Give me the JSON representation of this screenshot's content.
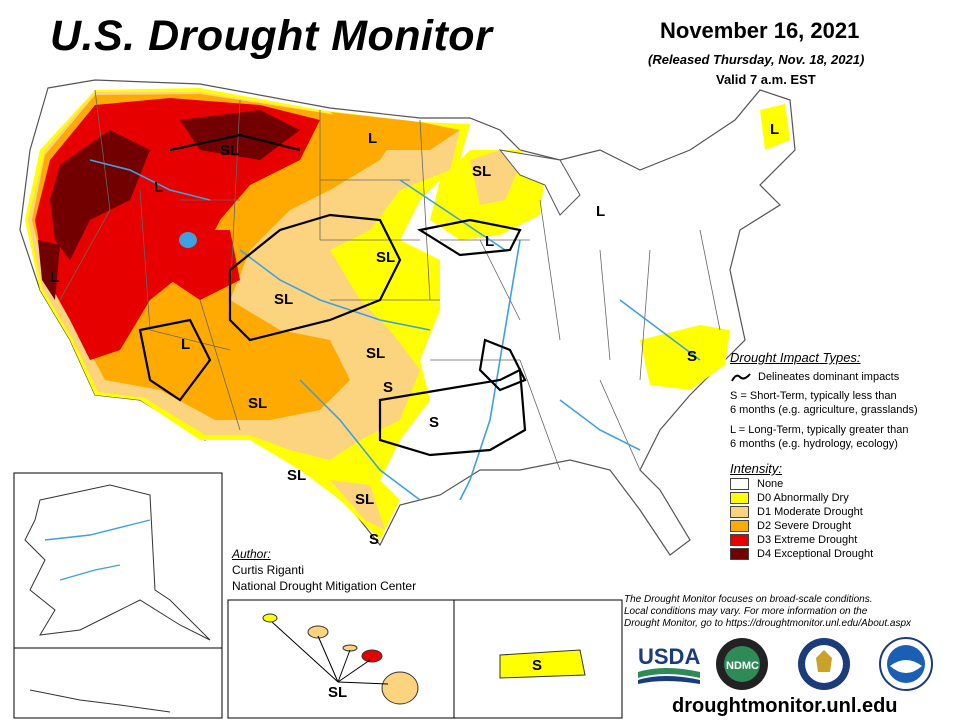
{
  "header": {
    "title": "U.S. Drought Monitor",
    "date": "November 16, 2021",
    "released": "(Released Thursday, Nov. 18, 2021)",
    "valid": "Valid 7 a.m. EST"
  },
  "colors": {
    "none": "#ffffff",
    "d0": "#ffff00",
    "d1": "#fcd37f",
    "d2": "#ffaa00",
    "d3": "#e60000",
    "d4": "#730000",
    "water": "#3fa0e0"
  },
  "map_labels": [
    "L",
    "SL",
    "L",
    "SL",
    "L",
    "L",
    "SL",
    "L",
    "L",
    "SL",
    "L",
    "SL",
    "SL",
    "S",
    "S",
    "SL",
    "SL",
    "S",
    "S",
    "L",
    "S",
    "SL",
    "S"
  ],
  "impact_legend": {
    "title": "Drought Impact Types:",
    "delineates": "Delineates dominant impacts",
    "s_line1": "S = Short-Term, typically less than",
    "s_line2": "6 months (e.g. agriculture, grasslands)",
    "l_line1": "L = Long-Term, typically greater than",
    "l_line2": "6 months (e.g. hydrology, ecology)"
  },
  "intensity_legend": {
    "title": "Intensity:",
    "items": [
      {
        "label": "None",
        "color": "#ffffff"
      },
      {
        "label": "D0 Abnormally Dry",
        "color": "#ffff00"
      },
      {
        "label": "D1 Moderate Drought",
        "color": "#fcd37f"
      },
      {
        "label": "D2 Severe Drought",
        "color": "#ffaa00"
      },
      {
        "label": "D3 Extreme Drought",
        "color": "#e60000"
      },
      {
        "label": "D4 Exceptional Drought",
        "color": "#730000"
      }
    ]
  },
  "author": {
    "heading": "Author:",
    "name": "Curtis Riganti",
    "org": "National Drought Mitigation Center"
  },
  "disclaimer": {
    "line1": "The Drought Monitor focuses on broad-scale conditions.",
    "line2": "Local conditions may vary. For more information on the",
    "line3": "Drought Monitor, go to https://droughtmonitor.unl.edu/About.aspx"
  },
  "logos": {
    "usda": "USDA",
    "ndmc": "NDMC"
  },
  "url": "droughtmonitor.unl.edu"
}
